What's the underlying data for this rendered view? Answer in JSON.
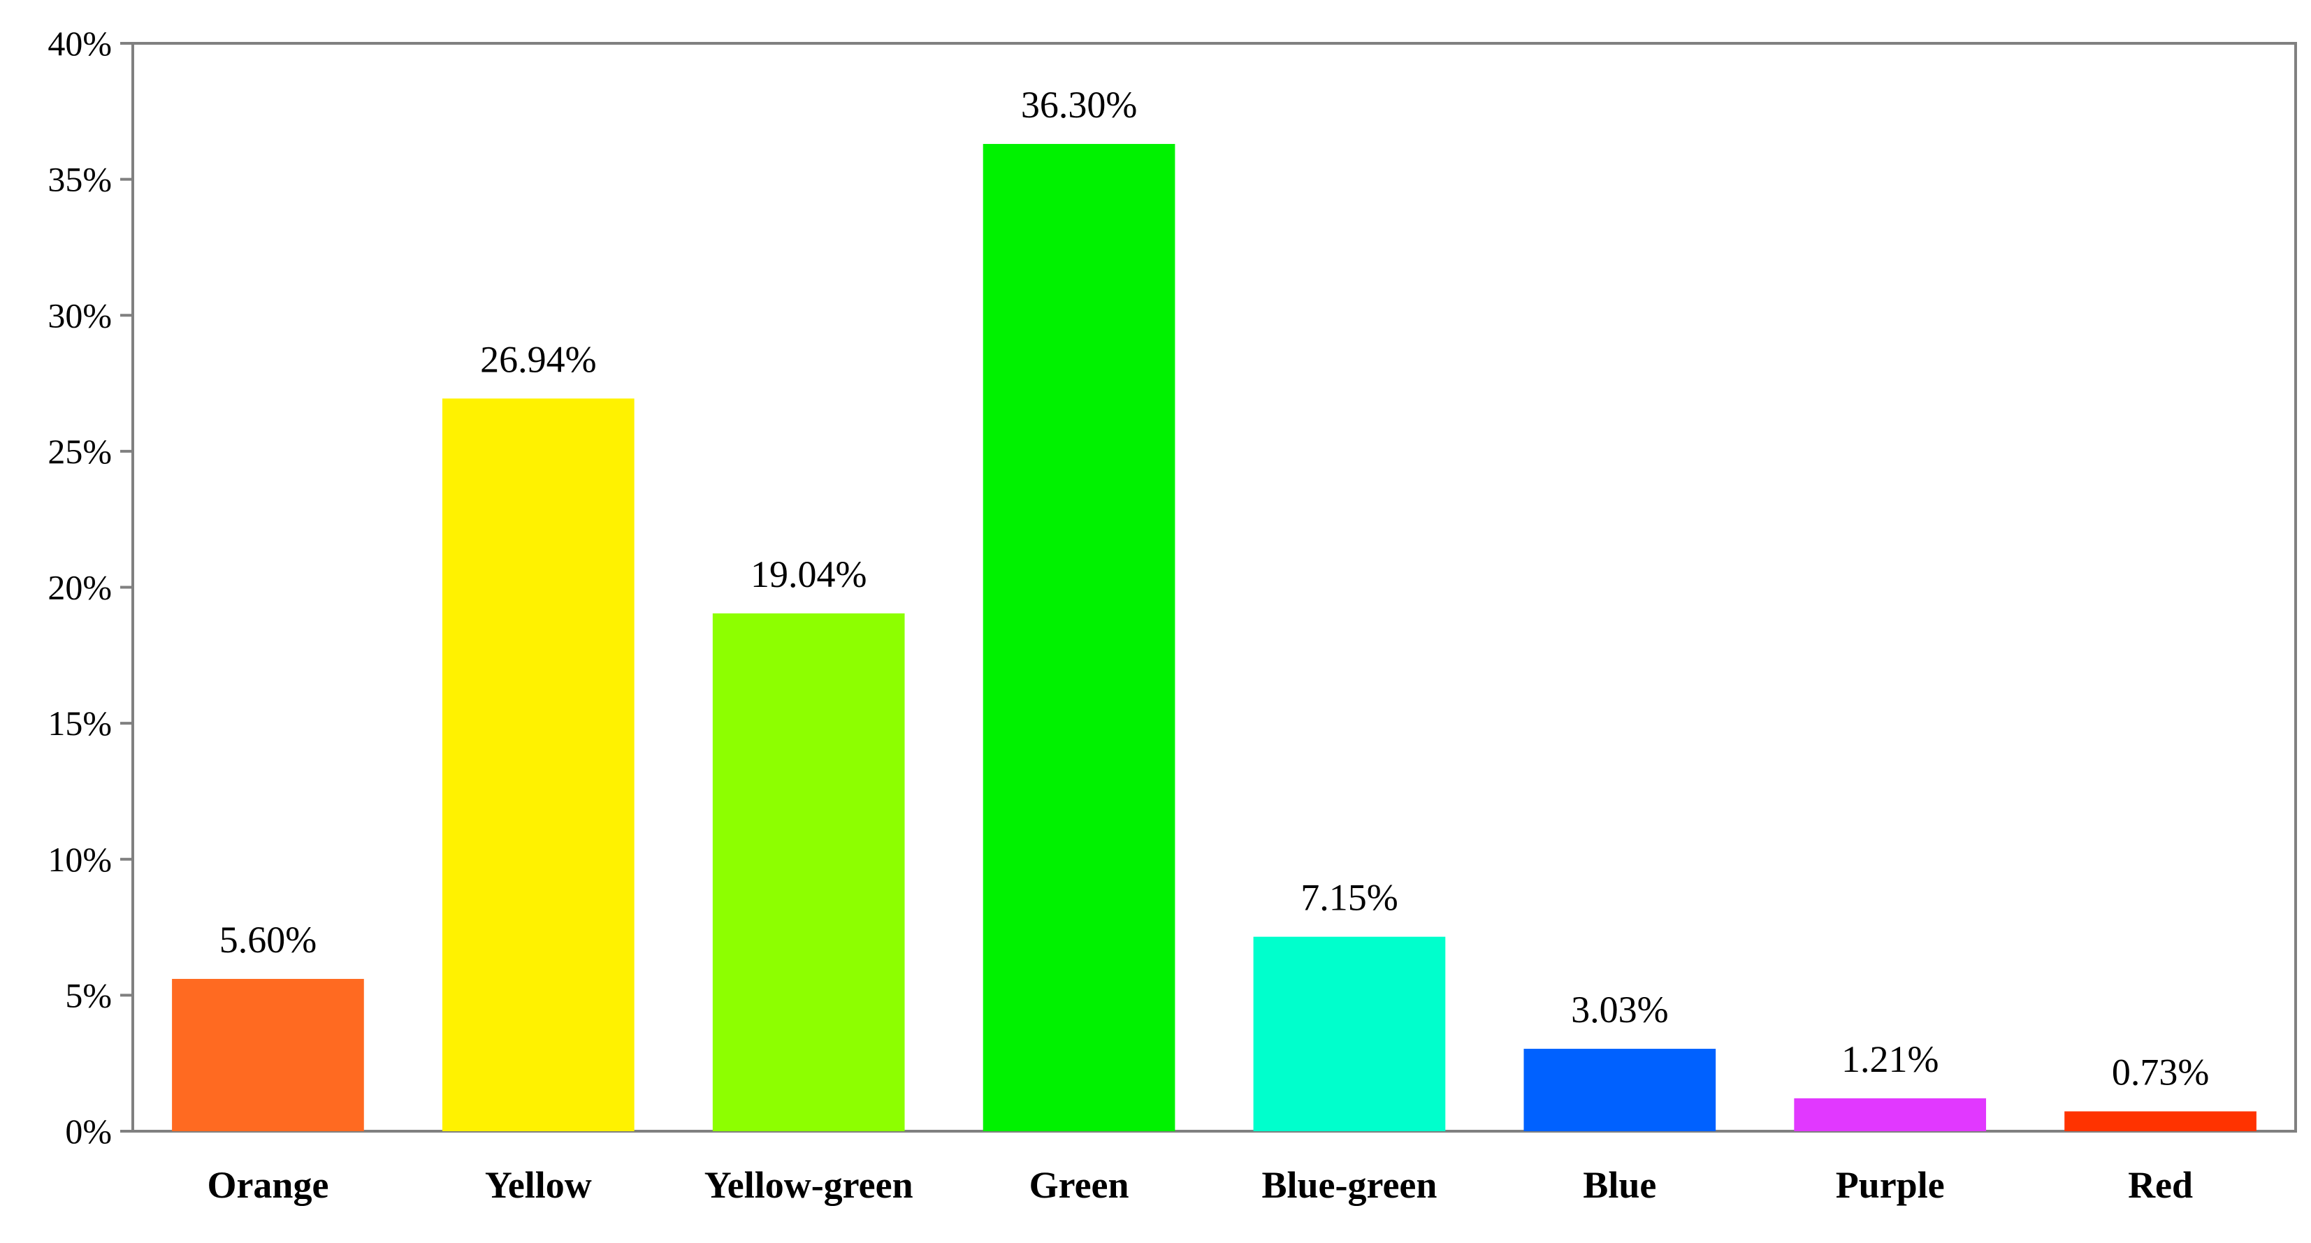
{
  "chart_data": {
    "type": "bar",
    "categories": [
      "Orange",
      "Yellow",
      "Yellow-green",
      "Green",
      "Blue-green",
      "Blue",
      "Purple",
      "Red"
    ],
    "values": [
      5.6,
      26.94,
      19.04,
      36.3,
      7.15,
      3.03,
      1.21,
      0.73
    ],
    "data_labels": [
      "5.60%",
      "26.94%",
      "19.04%",
      "36.30%",
      "7.15%",
      "3.03%",
      "1.21%",
      "0.73%"
    ],
    "colors": [
      "#ff6a21",
      "#fff200",
      "#8dff00",
      "#00f200",
      "#00ffcc",
      "#0061ff",
      "#e138ff",
      "#ff3300"
    ],
    "ylim": [
      0,
      40
    ],
    "y_ticks": [
      0,
      5,
      10,
      15,
      20,
      25,
      30,
      35,
      40
    ],
    "y_tick_labels": [
      "0%",
      "5%",
      "10%",
      "15%",
      "20%",
      "25%",
      "30%",
      "35%",
      "40%"
    ],
    "grid": false,
    "legend": "none",
    "title": "",
    "xlabel": "",
    "ylabel": ""
  }
}
